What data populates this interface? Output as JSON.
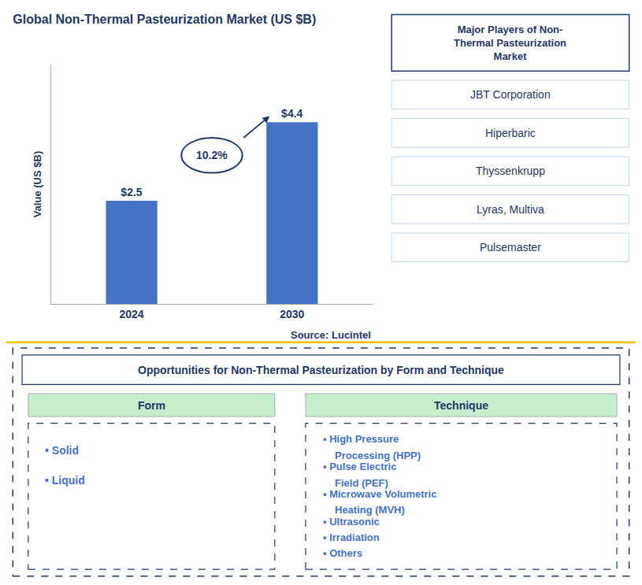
{
  "chart_data": {
    "type": "bar",
    "title": "Global Non-Thermal Pasteurization Market (US $B)",
    "categories": [
      "2024",
      "2030"
    ],
    "values": [
      2.5,
      4.4
    ],
    "value_labels": [
      "$2.5",
      "$4.4"
    ],
    "data_labels": true,
    "color": "#4472C4",
    "ylabel": "Value (US $B)",
    "ylim": [
      0,
      5.8
    ],
    "tick_labels": "x",
    "grid": false,
    "annotations": [
      "10.2%",
      "Source: Lucintel",
      "Major Players of Non-\nThermal Pasteurization\nMarket",
      "JBT Corporation",
      "Hiperbaric",
      "Thyssenkrupp",
      "Lyras, Multiva",
      "Pulsemaster",
      "Opportunities for Non-Thermal Pasteurization by Form and Technique",
      "Form",
      "• Solid",
      "• Liquid",
      "Technique",
      "• High Pressure\nProcessing (HPP)",
      "• Pulse Electric\nField (PEF)",
      "• Microwave Volumetric\nHeating (MVH)",
      "• Ultrasonic",
      "• Irradiation",
      "• Others"
    ]
  }
}
